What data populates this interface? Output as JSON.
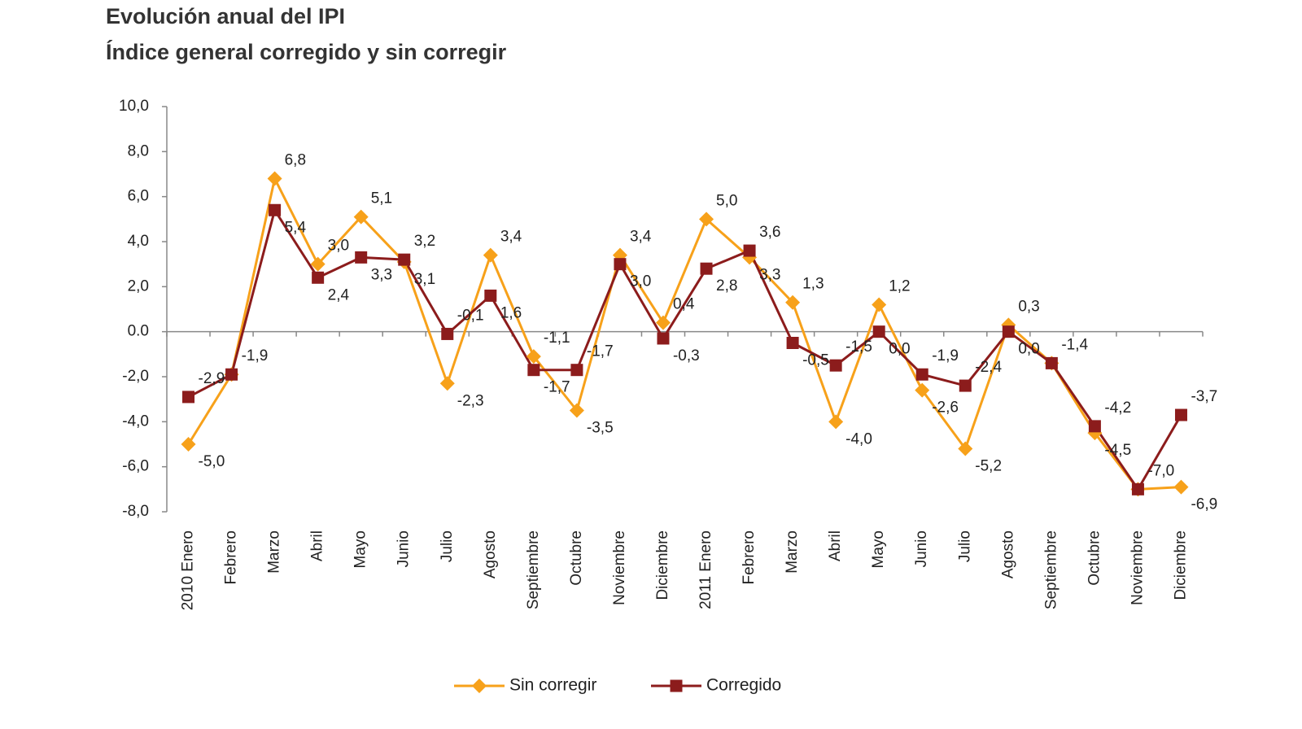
{
  "chart_data": {
    "type": "line",
    "title": "Evolución anual del IPI",
    "subtitle": "Índice general corregido y sin corregir",
    "categories": [
      "2010 Enero",
      "Febrero",
      "Marzo",
      "Abril",
      "Mayo",
      "Junio",
      "Julio",
      "Agosto",
      "Septiembre",
      "Octubre",
      "Noviembre",
      "Diciembre",
      "2011 Enero",
      "Febrero",
      "Marzo",
      "Abril",
      "Mayo",
      "Junio",
      "Julio",
      "Agosto",
      "Septiembre",
      "Octubre",
      "Noviembre",
      "Diciembre"
    ],
    "series": [
      {
        "name": "Sin corregir",
        "color": "#f7a11a",
        "marker": "diamond",
        "values": [
          -5.0,
          -1.9,
          6.8,
          3.0,
          5.1,
          3.1,
          -2.3,
          3.4,
          -1.1,
          -3.5,
          3.4,
          0.4,
          5.0,
          3.3,
          1.3,
          -4.0,
          1.2,
          -2.6,
          -5.2,
          0.3,
          -1.4,
          -4.5,
          -7.0,
          -6.9
        ],
        "value_labels": [
          "-5,0",
          null,
          "6,8",
          "3,0",
          "5,1",
          "3,1",
          "-2,3",
          "3,4",
          "-1,1",
          "-3,5",
          "3,4",
          "0,4",
          "5,0",
          "3,3",
          "1,3",
          "-4,0",
          "1,2",
          "-2,6",
          "-5,2",
          "0,3",
          null,
          "-4,5",
          "-7,0",
          "-6,9"
        ]
      },
      {
        "name": "Corregido",
        "color": "#8c1c1c",
        "marker": "square",
        "values": [
          -2.9,
          -1.9,
          5.4,
          2.4,
          3.3,
          3.2,
          -0.1,
          1.6,
          -1.7,
          -1.7,
          3.0,
          -0.3,
          2.8,
          3.6,
          -0.5,
          -1.5,
          0.0,
          -1.9,
          -2.4,
          0.0,
          -1.4,
          -4.2,
          -7.0,
          -3.7
        ],
        "value_labels": [
          "-2,9",
          "-1,9",
          "5,4",
          "2,4",
          "3,3",
          "3,2",
          "-0,1",
          "1,6",
          "-1,7",
          "-1,7",
          "3,0",
          "-0,3",
          "2,8",
          "3,6",
          "-0,5",
          "-1,5",
          "0,0",
          "-1,9",
          "-2,4",
          "0,0",
          "-1,4",
          "-4,2",
          null,
          "-3,7"
        ]
      }
    ],
    "ylim": [
      -8,
      10
    ],
    "yticks": [
      {
        "value": 10,
        "label": "10,0"
      },
      {
        "value": 8,
        "label": "8,0"
      },
      {
        "value": 6,
        "label": "6,0"
      },
      {
        "value": 4,
        "label": "4,0"
      },
      {
        "value": 2,
        "label": "2,0"
      },
      {
        "value": 0,
        "label": "0.0"
      },
      {
        "value": -2,
        "label": "-2,0"
      },
      {
        "value": -4,
        "label": "-4,0"
      },
      {
        "value": -6,
        "label": "-6,0"
      },
      {
        "value": -8,
        "label": "-8,0"
      }
    ],
    "grid": false,
    "legend": "bottom"
  }
}
